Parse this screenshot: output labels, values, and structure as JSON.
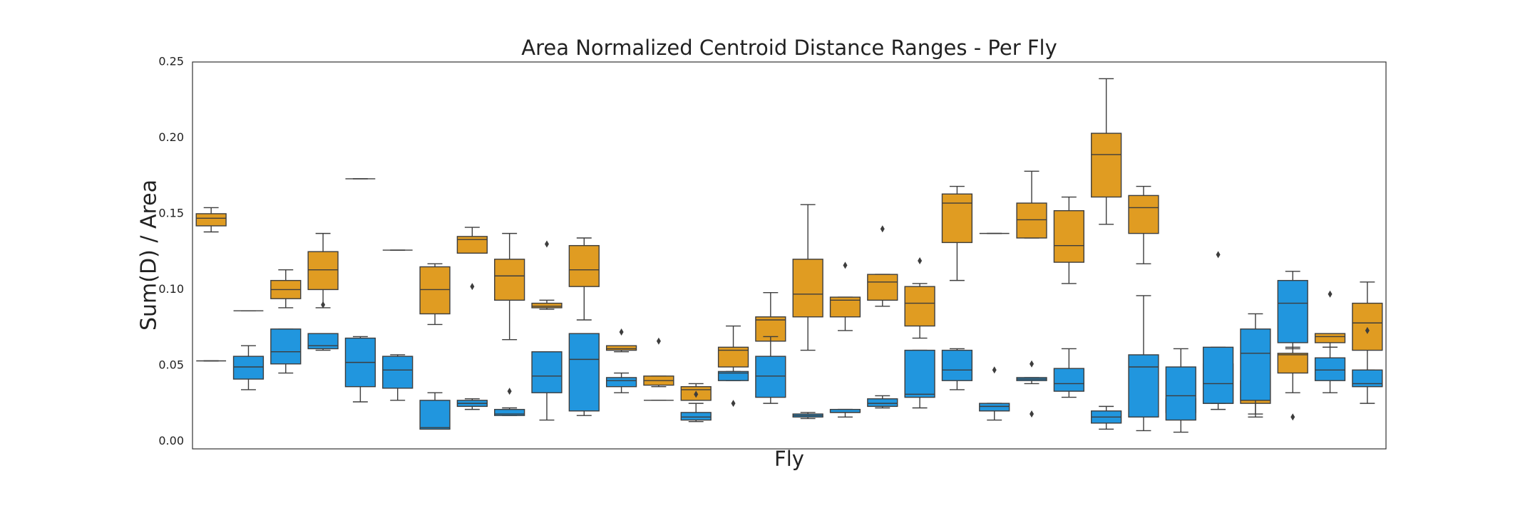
{
  "chart_data": {
    "type": "box",
    "title": "Area Normalized Centroid Distance Ranges - Per Fly",
    "y_label": "Sum(D) / Area",
    "x_label": "Fly",
    "categories": [
      null,
      null,
      null,
      null,
      null,
      null,
      null,
      null,
      null,
      null,
      null,
      null,
      null,
      null,
      null,
      null,
      null,
      null,
      null,
      null,
      null,
      null,
      null,
      null,
      null,
      null,
      null,
      null,
      null,
      null,
      null,
      null
    ],
    "ylim": [
      -0.005,
      0.25
    ],
    "yticks": [
      {
        "value": 0,
        "label": "0.00"
      },
      {
        "value": 0.05,
        "label": "0.05"
      },
      {
        "value": 0.1,
        "label": "0.10"
      },
      {
        "value": 0.15,
        "label": "0.15"
      },
      {
        "value": 0.2,
        "label": "0.20"
      },
      {
        "value": 0.25,
        "label": "0.25"
      }
    ],
    "grid": false,
    "series": [
      {
        "color": "#e09c22",
        "boxes": [
          {
            "whislo": 0.138,
            "q1": 0.142,
            "med": 0.147,
            "q3": 0.15,
            "whishi": 0.154
          },
          {
            "whislo": 0.086,
            "q1": 0.086,
            "med": 0.086,
            "q3": 0.086,
            "whishi": 0.086
          },
          {
            "whislo": 0.088,
            "q1": 0.094,
            "med": 0.1,
            "q3": 0.106,
            "whishi": 0.113
          },
          {
            "whislo": 0.088,
            "q1": 0.1,
            "med": 0.113,
            "q3": 0.125,
            "whishi": 0.137,
            "fliers": [
              0.09
            ]
          },
          {
            "whislo": 0.173,
            "q1": 0.173,
            "med": 0.173,
            "q3": 0.173,
            "whishi": 0.173
          },
          {
            "whislo": 0.126,
            "q1": 0.126,
            "med": 0.126,
            "q3": 0.126,
            "whishi": 0.126
          },
          {
            "whislo": 0.077,
            "q1": 0.084,
            "med": 0.1,
            "q3": 0.115,
            "whishi": 0.117
          },
          {
            "whislo": 0.124,
            "q1": 0.124,
            "med": 0.133,
            "q3": 0.135,
            "whishi": 0.141,
            "fliers": [
              0.102
            ]
          },
          {
            "whislo": 0.067,
            "q1": 0.093,
            "med": 0.109,
            "q3": 0.12,
            "whishi": 0.137
          },
          {
            "whislo": 0.087,
            "q1": 0.088,
            "med": 0.089,
            "q3": 0.091,
            "whishi": 0.093,
            "fliers": [
              0.13
            ]
          },
          {
            "whislo": 0.08,
            "q1": 0.102,
            "med": 0.113,
            "q3": 0.129,
            "whishi": 0.134
          },
          {
            "whislo": 0.059,
            "q1": 0.06,
            "med": 0.061,
            "q3": 0.063,
            "whishi": 0.063,
            "fliers": [
              0.072
            ]
          },
          {
            "whislo": 0.036,
            "q1": 0.037,
            "med": 0.04,
            "q3": 0.043,
            "whishi": 0.043,
            "fliers": [
              0.066
            ]
          },
          {
            "whislo": 0.027,
            "q1": 0.027,
            "med": 0.034,
            "q3": 0.036,
            "whishi": 0.038,
            "fliers": [
              0.031
            ]
          },
          {
            "whislo": 0.043,
            "q1": 0.049,
            "med": 0.06,
            "q3": 0.062,
            "whishi": 0.076
          },
          {
            "whislo": 0.066,
            "q1": 0.066,
            "med": 0.08,
            "q3": 0.082,
            "whishi": 0.098
          },
          {
            "whislo": 0.06,
            "q1": 0.082,
            "med": 0.097,
            "q3": 0.12,
            "whishi": 0.156
          },
          {
            "whislo": 0.073,
            "q1": 0.082,
            "med": 0.093,
            "q3": 0.095,
            "whishi": 0.095,
            "fliers": [
              0.116
            ]
          },
          {
            "whislo": 0.089,
            "q1": 0.093,
            "med": 0.105,
            "q3": 0.11,
            "whishi": 0.11,
            "fliers": [
              0.14
            ]
          },
          {
            "whislo": 0.068,
            "q1": 0.076,
            "med": 0.091,
            "q3": 0.102,
            "whishi": 0.104,
            "fliers": [
              0.119
            ]
          },
          {
            "whislo": 0.106,
            "q1": 0.131,
            "med": 0.157,
            "q3": 0.163,
            "whishi": 0.168
          },
          {
            "whislo": 0.137,
            "q1": 0.137,
            "med": 0.137,
            "q3": 0.137,
            "whishi": 0.137
          },
          {
            "whislo": 0.134,
            "q1": 0.134,
            "med": 0.146,
            "q3": 0.157,
            "whishi": 0.178
          },
          {
            "whislo": 0.104,
            "q1": 0.118,
            "med": 0.129,
            "q3": 0.152,
            "whishi": 0.161
          },
          {
            "whislo": 0.143,
            "q1": 0.161,
            "med": 0.189,
            "q3": 0.203,
            "whishi": 0.239
          },
          {
            "whislo": 0.117,
            "q1": 0.137,
            "med": 0.154,
            "q3": 0.162,
            "whishi": 0.168
          },
          {
            "whislo": 0.017,
            "q1": 0.019,
            "med": 0.02,
            "q3": 0.028,
            "whishi": 0.039
          },
          {
            "whislo": 0.025,
            "q1": 0.025,
            "med": 0.029,
            "q3": 0.051,
            "whishi": 0.058,
            "fliers": [
              0.123
            ]
          },
          {
            "whislo": 0.018,
            "q1": 0.025,
            "med": 0.034,
            "q3": 0.04,
            "whishi": 0.048
          },
          {
            "whislo": 0.032,
            "q1": 0.045,
            "med": 0.057,
            "q3": 0.058,
            "whishi": 0.062
          },
          {
            "whislo": 0.062,
            "q1": 0.065,
            "med": 0.069,
            "q3": 0.071,
            "whishi": 0.071,
            "fliers": [
              0.097
            ]
          },
          {
            "whislo": 0.043,
            "q1": 0.06,
            "med": 0.078,
            "q3": 0.091,
            "whishi": 0.105,
            "fliers": [
              0.073
            ]
          }
        ]
      },
      {
        "color": "#2196de",
        "boxes": [
          {
            "whislo": 0.053,
            "q1": 0.053,
            "med": 0.053,
            "q3": 0.053,
            "whishi": 0.053
          },
          {
            "whislo": 0.034,
            "q1": 0.041,
            "med": 0.049,
            "q3": 0.056,
            "whishi": 0.063
          },
          {
            "whislo": 0.045,
            "q1": 0.051,
            "med": 0.059,
            "q3": 0.074,
            "whishi": 0.074
          },
          {
            "whislo": 0.06,
            "q1": 0.061,
            "med": 0.063,
            "q3": 0.071,
            "whishi": 0.071
          },
          {
            "whislo": 0.026,
            "q1": 0.036,
            "med": 0.052,
            "q3": 0.068,
            "whishi": 0.069
          },
          {
            "whislo": 0.027,
            "q1": 0.035,
            "med": 0.047,
            "q3": 0.056,
            "whishi": 0.057
          },
          {
            "whislo": 0.008,
            "q1": 0.008,
            "med": 0.009,
            "q3": 0.027,
            "whishi": 0.032
          },
          {
            "whislo": 0.021,
            "q1": 0.023,
            "med": 0.025,
            "q3": 0.027,
            "whishi": 0.028
          },
          {
            "whislo": 0.017,
            "q1": 0.017,
            "med": 0.018,
            "q3": 0.021,
            "whishi": 0.022,
            "fliers": [
              0.033
            ]
          },
          {
            "whislo": 0.014,
            "q1": 0.032,
            "med": 0.043,
            "q3": 0.059,
            "whishi": 0.059
          },
          {
            "whislo": 0.017,
            "q1": 0.02,
            "med": 0.054,
            "q3": 0.071,
            "whishi": 0.071
          },
          {
            "whislo": 0.032,
            "q1": 0.036,
            "med": 0.04,
            "q3": 0.042,
            "whishi": 0.045
          },
          {
            "whislo": 0.027,
            "q1": 0.027,
            "med": 0.027,
            "q3": 0.027,
            "whishi": 0.027
          },
          {
            "whislo": 0.013,
            "q1": 0.014,
            "med": 0.016,
            "q3": 0.019,
            "whishi": 0.025
          },
          {
            "whislo": 0.04,
            "q1": 0.04,
            "med": 0.045,
            "q3": 0.046,
            "whishi": 0.046,
            "fliers": [
              0.025
            ]
          },
          {
            "whislo": 0.025,
            "q1": 0.029,
            "med": 0.043,
            "q3": 0.056,
            "whishi": 0.069
          },
          {
            "whislo": 0.015,
            "q1": 0.016,
            "med": 0.017,
            "q3": 0.018,
            "whishi": 0.019
          },
          {
            "whislo": 0.016,
            "q1": 0.019,
            "med": 0.019,
            "q3": 0.021,
            "whishi": 0.021
          },
          {
            "whislo": 0.022,
            "q1": 0.023,
            "med": 0.025,
            "q3": 0.028,
            "whishi": 0.03
          },
          {
            "whislo": 0.022,
            "q1": 0.029,
            "med": 0.031,
            "q3": 0.06,
            "whishi": 0.06
          },
          {
            "whislo": 0.034,
            "q1": 0.04,
            "med": 0.047,
            "q3": 0.06,
            "whishi": 0.061
          },
          {
            "whislo": 0.014,
            "q1": 0.02,
            "med": 0.023,
            "q3": 0.025,
            "whishi": 0.025,
            "fliers": [
              0.047
            ]
          },
          {
            "whislo": 0.038,
            "q1": 0.04,
            "med": 0.041,
            "q3": 0.042,
            "whishi": 0.042,
            "fliers": [
              0.051,
              0.018
            ]
          },
          {
            "whislo": 0.029,
            "q1": 0.033,
            "med": 0.038,
            "q3": 0.048,
            "whishi": 0.061
          },
          {
            "whislo": 0.008,
            "q1": 0.012,
            "med": 0.016,
            "q3": 0.02,
            "whishi": 0.023
          },
          {
            "whislo": 0.007,
            "q1": 0.016,
            "med": 0.049,
            "q3": 0.057,
            "whishi": 0.096
          },
          {
            "whislo": 0.006,
            "q1": 0.014,
            "med": 0.03,
            "q3": 0.049,
            "whishi": 0.061
          },
          {
            "whislo": 0.021,
            "q1": 0.025,
            "med": 0.038,
            "q3": 0.062,
            "whishi": 0.062
          },
          {
            "whislo": 0.016,
            "q1": 0.027,
            "med": 0.058,
            "q3": 0.074,
            "whishi": 0.084
          },
          {
            "whislo": 0.061,
            "q1": 0.065,
            "med": 0.091,
            "q3": 0.106,
            "whishi": 0.112,
            "fliers": [
              0.016
            ]
          },
          {
            "whislo": 0.032,
            "q1": 0.04,
            "med": 0.047,
            "q3": 0.055,
            "whishi": 0.062
          },
          {
            "whislo": 0.025,
            "q1": 0.036,
            "med": 0.038,
            "q3": 0.047,
            "whishi": 0.047
          }
        ]
      }
    ]
  }
}
